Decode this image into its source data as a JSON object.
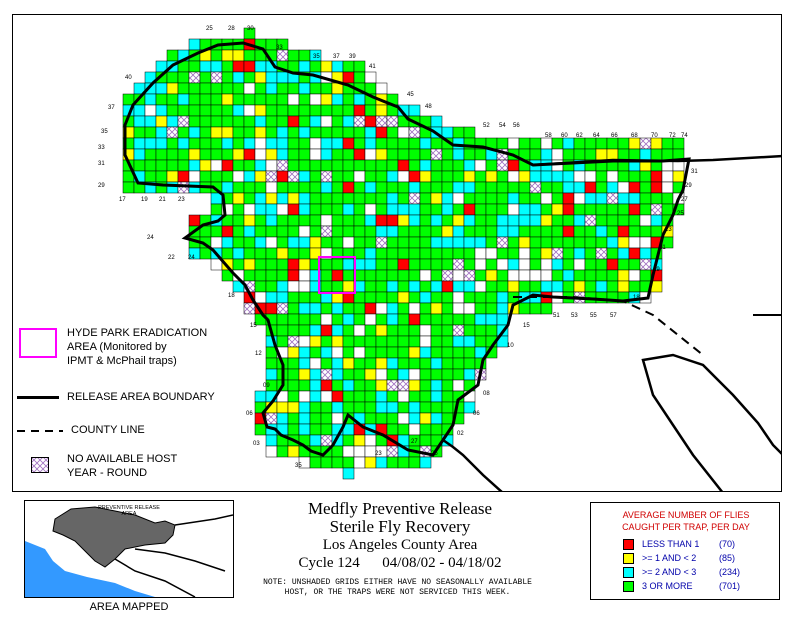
{
  "legend": {
    "hyde_park": "HYDE PARK ERADICATION",
    "hyde_park_2": "AREA (Monitored by",
    "hyde_park_3": "IPMT & McPhail traps)",
    "release_boundary": "RELEASE AREA BOUNDARY",
    "county_line": "COUNTY LINE",
    "no_host": "NO AVAILABLE HOST",
    "no_host_2": "YEAR - ROUND"
  },
  "inset": {
    "label_top": "PREVENTIVE RELEASE",
    "label_top_2": "AREA",
    "area_mapped": "AREA MAPPED"
  },
  "title": {
    "line1": "Medfly Preventive Release",
    "line2": "Sterile Fly Recovery",
    "line3": "Los Angeles County Area",
    "line4": "Cycle 124      04/08/02 - 04/18/02"
  },
  "note": {
    "line1": "NOTE: UNSHADED GRIDS EITHER HAVE NO SEASONALLY AVAILABLE",
    "line2": "HOST, OR THE TRAPS WERE NOT SERVICED THIS WEEK."
  },
  "key": {
    "title1": "AVERAGE NUMBER OF FLIES",
    "title2": "CAUGHT PER TRAP, PER DAY",
    "rows": [
      {
        "label": "LESS THAN 1",
        "count": "(70)",
        "color": "#ff0000"
      },
      {
        "label": ">= 1 AND < 2",
        "count": "(85)",
        "color": "#ffff00"
      },
      {
        "label": ">= 2 AND < 3",
        "count": "(234)",
        "color": "#00ffff"
      },
      {
        "label": "3 OR MORE",
        "count": "(701)",
        "color": "#00ff00"
      }
    ]
  },
  "grid_labels": {
    "top": [
      "25",
      "28",
      "30",
      "33",
      "35",
      "37",
      "39",
      "41",
      "45",
      "48",
      "52",
      "54",
      "56",
      "58",
      "60",
      "62",
      "64",
      "66",
      "68",
      "70",
      "72",
      "74"
    ],
    "left_top": [
      "40",
      "37",
      "35",
      "33",
      "31",
      "29"
    ],
    "left_bottom_row": [
      "17",
      "19",
      "21",
      "23"
    ],
    "left_mid": [
      "24",
      "22",
      "24",
      "18",
      "15",
      "12",
      "09",
      "06",
      "03"
    ],
    "bottom": [
      "35",
      "23",
      "27",
      "25"
    ],
    "right": [
      "31",
      "29",
      "27",
      "25",
      "23",
      "21",
      "19",
      "18"
    ],
    "right_lower": [
      "51",
      "53",
      "55",
      "57",
      "15",
      "10",
      "08",
      "06",
      "02"
    ]
  },
  "colors": {
    "less_than_1": "#ff0000",
    "one_to_two": "#ffff00",
    "two_to_three": "#00ffff",
    "three_plus": "#00ff00",
    "hyde_park": "#ff00ff",
    "inset_ocean": "#3399ff",
    "inset_area": "#666666"
  }
}
